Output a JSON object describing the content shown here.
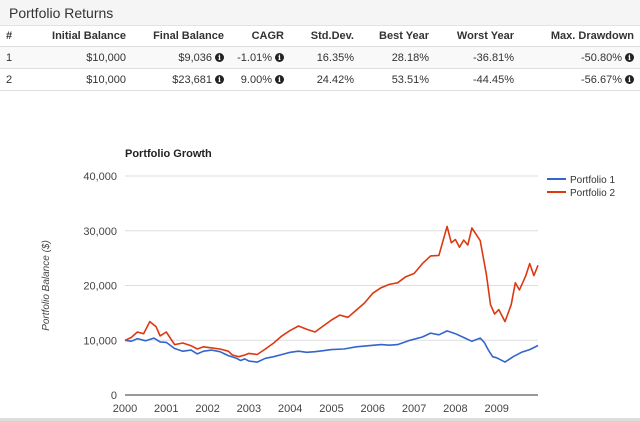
{
  "header": {
    "title": "Portfolio Returns"
  },
  "table": {
    "columns": [
      "#",
      "Initial Balance",
      "Final Balance",
      "CAGR",
      "Std.Dev.",
      "Best Year",
      "Worst Year",
      "Max. Drawdown"
    ],
    "rows": [
      {
        "id": "1",
        "initial": "$10,000",
        "final": "$9,036",
        "cagr": "-1.01%",
        "stdev": "16.35%",
        "best": "28.18%",
        "worst": "-36.81%",
        "drawdown": "-50.80%"
      },
      {
        "id": "2",
        "initial": "$10,000",
        "final": "$23,681",
        "cagr": "9.00%",
        "stdev": "24.42%",
        "best": "53.51%",
        "worst": "-44.45%",
        "drawdown": "-56.67%"
      }
    ],
    "info_icon": "info-icon"
  },
  "chart_data": {
    "type": "line",
    "title": "Portfolio Growth",
    "xlabel": "",
    "ylabel": "Portfolio Balance ($)",
    "xlim": [
      2000,
      2010
    ],
    "ylim": [
      0,
      40000
    ],
    "x_ticks": [
      "2000",
      "2001",
      "2002",
      "2003",
      "2004",
      "2005",
      "2006",
      "2007",
      "2008",
      "2009"
    ],
    "y_ticks": [
      "0",
      "10,000",
      "20,000",
      "30,000",
      "40,000"
    ],
    "grid": true,
    "legend_position": "right",
    "series": [
      {
        "name": "Portfolio 1",
        "color": "#3366cc",
        "points": [
          [
            2000.0,
            10000
          ],
          [
            2000.15,
            9800
          ],
          [
            2000.3,
            10300
          ],
          [
            2000.5,
            9900
          ],
          [
            2000.7,
            10400
          ],
          [
            2000.85,
            9700
          ],
          [
            2001.0,
            9600
          ],
          [
            2001.2,
            8500
          ],
          [
            2001.4,
            8000
          ],
          [
            2001.6,
            8200
          ],
          [
            2001.75,
            7500
          ],
          [
            2001.9,
            8000
          ],
          [
            2002.1,
            8200
          ],
          [
            2002.3,
            7900
          ],
          [
            2002.5,
            7200
          ],
          [
            2002.7,
            6700
          ],
          [
            2002.8,
            6300
          ],
          [
            2002.9,
            6600
          ],
          [
            2003.0,
            6200
          ],
          [
            2003.2,
            6000
          ],
          [
            2003.4,
            6700
          ],
          [
            2003.6,
            7000
          ],
          [
            2003.8,
            7400
          ],
          [
            2004.0,
            7800
          ],
          [
            2004.2,
            8000
          ],
          [
            2004.4,
            7800
          ],
          [
            2004.6,
            7900
          ],
          [
            2004.8,
            8100
          ],
          [
            2005.0,
            8300
          ],
          [
            2005.3,
            8400
          ],
          [
            2005.6,
            8800
          ],
          [
            2005.9,
            9000
          ],
          [
            2006.2,
            9200
          ],
          [
            2006.4,
            9100
          ],
          [
            2006.6,
            9200
          ],
          [
            2006.9,
            10000
          ],
          [
            2007.2,
            10600
          ],
          [
            2007.4,
            11300
          ],
          [
            2007.6,
            11000
          ],
          [
            2007.8,
            11700
          ],
          [
            2008.0,
            11200
          ],
          [
            2008.2,
            10500
          ],
          [
            2008.4,
            9800
          ],
          [
            2008.6,
            10400
          ],
          [
            2008.7,
            9600
          ],
          [
            2008.8,
            8200
          ],
          [
            2008.9,
            7000
          ],
          [
            2009.0,
            6800
          ],
          [
            2009.2,
            6000
          ],
          [
            2009.4,
            7000
          ],
          [
            2009.6,
            7800
          ],
          [
            2009.8,
            8300
          ],
          [
            2010.0,
            9036
          ]
        ]
      },
      {
        "name": "Portfolio 2",
        "color": "#dc3912",
        "points": [
          [
            2000.0,
            10000
          ],
          [
            2000.15,
            10500
          ],
          [
            2000.3,
            11500
          ],
          [
            2000.45,
            11200
          ],
          [
            2000.6,
            13400
          ],
          [
            2000.75,
            12500
          ],
          [
            2000.85,
            10800
          ],
          [
            2001.0,
            11500
          ],
          [
            2001.2,
            9200
          ],
          [
            2001.4,
            9500
          ],
          [
            2001.6,
            9000
          ],
          [
            2001.75,
            8400
          ],
          [
            2001.9,
            8800
          ],
          [
            2002.1,
            8600
          ],
          [
            2002.3,
            8400
          ],
          [
            2002.5,
            8000
          ],
          [
            2002.6,
            7300
          ],
          [
            2002.75,
            7000
          ],
          [
            2002.9,
            7300
          ],
          [
            2003.0,
            7600
          ],
          [
            2003.2,
            7400
          ],
          [
            2003.4,
            8400
          ],
          [
            2003.6,
            9500
          ],
          [
            2003.8,
            10800
          ],
          [
            2004.0,
            11800
          ],
          [
            2004.2,
            12600
          ],
          [
            2004.4,
            12000
          ],
          [
            2004.6,
            11500
          ],
          [
            2004.8,
            12600
          ],
          [
            2005.0,
            13700
          ],
          [
            2005.2,
            14600
          ],
          [
            2005.4,
            14200
          ],
          [
            2005.6,
            15500
          ],
          [
            2005.8,
            16800
          ],
          [
            2006.0,
            18600
          ],
          [
            2006.2,
            19600
          ],
          [
            2006.4,
            20200
          ],
          [
            2006.6,
            20500
          ],
          [
            2006.8,
            21600
          ],
          [
            2007.0,
            22200
          ],
          [
            2007.2,
            24000
          ],
          [
            2007.4,
            25400
          ],
          [
            2007.6,
            25500
          ],
          [
            2007.8,
            30800
          ],
          [
            2007.9,
            27800
          ],
          [
            2008.0,
            28400
          ],
          [
            2008.1,
            27000
          ],
          [
            2008.2,
            28300
          ],
          [
            2008.3,
            27400
          ],
          [
            2008.4,
            30500
          ],
          [
            2008.6,
            28200
          ],
          [
            2008.75,
            22000
          ],
          [
            2008.85,
            16500
          ],
          [
            2008.95,
            14800
          ],
          [
            2009.05,
            15600
          ],
          [
            2009.2,
            13400
          ],
          [
            2009.35,
            16500
          ],
          [
            2009.45,
            20500
          ],
          [
            2009.55,
            19200
          ],
          [
            2009.7,
            21700
          ],
          [
            2009.8,
            24000
          ],
          [
            2009.9,
            21800
          ],
          [
            2010.0,
            23681
          ]
        ]
      }
    ]
  }
}
